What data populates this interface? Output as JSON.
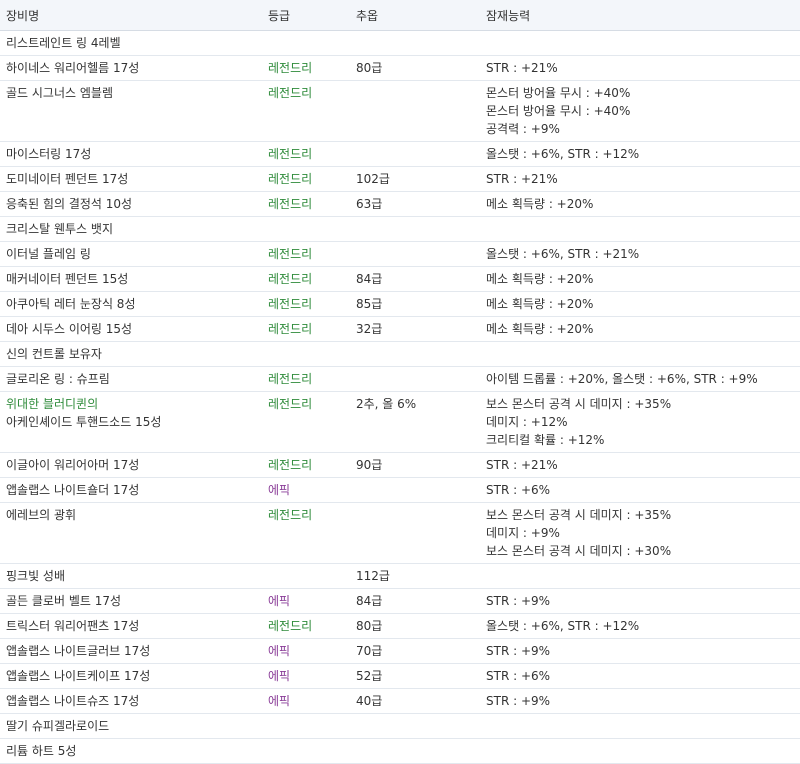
{
  "colors": {
    "legendary": "#2e8b3a",
    "epic": "#8a3d98"
  },
  "headers": {
    "name": "장비명",
    "grade": "등급",
    "stars": "추옵",
    "potential": "잠재능력"
  },
  "rows": [
    {
      "name": [
        "리스트레인트 링 4레벨"
      ],
      "grade": "",
      "stars": "",
      "potential": []
    },
    {
      "name": [
        "하이네스 워리어헬름 17성"
      ],
      "grade": "레전드리",
      "stars": "80급",
      "potential": [
        "STR : +21%"
      ]
    },
    {
      "name": [
        "골드 시그너스 엠블렘"
      ],
      "grade": "레전드리",
      "stars": "",
      "potential": [
        "몬스터 방어율 무시 : +40%",
        "몬스터 방어율 무시 : +40%",
        "공격력 : +9%"
      ]
    },
    {
      "name": [
        "마이스터링 17성"
      ],
      "grade": "레전드리",
      "stars": "",
      "potential": [
        "올스탯 : +6%, STR : +12%"
      ]
    },
    {
      "name": [
        "도미네이터 펜던트 17성"
      ],
      "grade": "레전드리",
      "stars": "102급",
      "potential": [
        "STR : +21%"
      ]
    },
    {
      "name": [
        "응축된 힘의 결정석 10성"
      ],
      "grade": "레전드리",
      "stars": "63급",
      "potential": [
        "메소 획득량 : +20%"
      ]
    },
    {
      "name": [
        "크리스탈 웬투스 뱃지"
      ],
      "grade": "",
      "stars": "",
      "potential": []
    },
    {
      "name": [
        "이터널 플레임 링"
      ],
      "grade": "레전드리",
      "stars": "",
      "potential": [
        "올스탯 : +6%, STR : +21%"
      ]
    },
    {
      "name": [
        "매커네이터 펜던트 15성"
      ],
      "grade": "레전드리",
      "stars": "84급",
      "potential": [
        "메소 획득량 : +20%"
      ]
    },
    {
      "name": [
        "아쿠아틱 레터 눈장식 8성"
      ],
      "grade": "레전드리",
      "stars": "85급",
      "potential": [
        "메소 획득량 : +20%"
      ]
    },
    {
      "name": [
        "데아 시두스 이어링 15성"
      ],
      "grade": "레전드리",
      "stars": "32급",
      "potential": [
        "메소 획득량 : +20%"
      ]
    },
    {
      "name": [
        "신의 컨트롤 보유자"
      ],
      "grade": "",
      "stars": "",
      "potential": []
    },
    {
      "name": [
        "글로리온 링 : 슈프림"
      ],
      "grade": "레전드리",
      "stars": "",
      "potential": [
        "아이템 드롭률 : +20%, 올스탯 : +6%, STR : +9%"
      ]
    },
    {
      "name": [
        "위대한 블러디퀸의",
        "아케인셰이드 투핸드소드 15성"
      ],
      "name_first_green": true,
      "grade": "레전드리",
      "stars": "2추, 올 6%",
      "potential": [
        "보스 몬스터 공격 시 데미지 : +35%",
        "데미지 : +12%",
        "크리티컬 확률 : +12%"
      ]
    },
    {
      "name": [
        "이글아이 워리어아머 17성"
      ],
      "grade": "레전드리",
      "stars": "90급",
      "potential": [
        "STR : +21%"
      ]
    },
    {
      "name": [
        "앱솔랩스 나이트숄더 17성"
      ],
      "grade": "에픽",
      "stars": "",
      "potential": [
        "STR : +6%"
      ]
    },
    {
      "name": [
        "에레브의 광휘"
      ],
      "grade": "레전드리",
      "stars": "",
      "potential": [
        "보스 몬스터 공격 시 데미지 : +35%",
        "데미지 : +9%",
        "보스 몬스터 공격 시 데미지 : +30%"
      ]
    },
    {
      "name": [
        "핑크빛 성배"
      ],
      "grade": "",
      "stars": "112급",
      "potential": []
    },
    {
      "name": [
        "골든 클로버 벨트 17성"
      ],
      "grade": "에픽",
      "stars": "84급",
      "potential": [
        "STR : +9%"
      ]
    },
    {
      "name": [
        "트릭스터 워리어팬츠 17성"
      ],
      "grade": "레전드리",
      "stars": "80급",
      "potential": [
        "올스탯 : +6%, STR : +12%"
      ]
    },
    {
      "name": [
        "앱솔랩스 나이트글러브 17성"
      ],
      "grade": "에픽",
      "stars": "70급",
      "potential": [
        "STR : +9%"
      ]
    },
    {
      "name": [
        "앱솔랩스 나이트케이프 17성"
      ],
      "grade": "에픽",
      "stars": "52급",
      "potential": [
        "STR : +6%"
      ]
    },
    {
      "name": [
        "앱솔랩스 나이트슈즈 17성"
      ],
      "grade": "에픽",
      "stars": "40급",
      "potential": [
        "STR : +9%"
      ]
    },
    {
      "name": [
        "딸기 슈피겔라로이드"
      ],
      "grade": "",
      "stars": "",
      "potential": []
    },
    {
      "name": [
        "리튬 하트 5성"
      ],
      "grade": "",
      "stars": "",
      "potential": []
    }
  ]
}
